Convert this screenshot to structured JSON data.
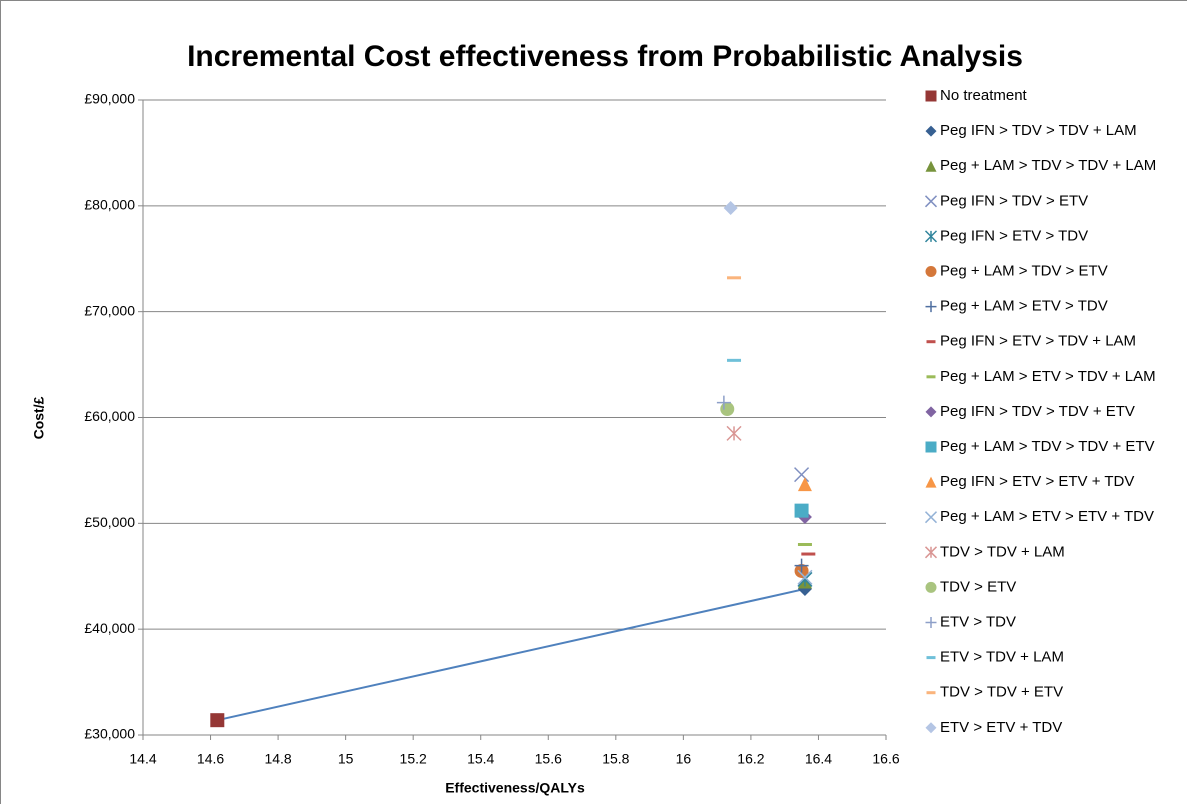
{
  "chart_data": {
    "type": "scatter",
    "title": "Incremental Cost effectiveness from Probabilistic Analysis",
    "x_label": "Effectiveness/QALYs",
    "y_label": "Cost/£",
    "xlim": [
      14.4,
      16.6
    ],
    "ylim": [
      30000,
      90000
    ],
    "xticks": [
      14.4,
      14.6,
      14.8,
      15,
      15.2,
      15.4,
      15.6,
      15.8,
      16,
      16.2,
      16.4,
      16.6
    ],
    "yticks": [
      {
        "value": 30000,
        "label": "£30,000"
      },
      {
        "value": 40000,
        "label": "£40,000"
      },
      {
        "value": 50000,
        "label": "£50,000"
      },
      {
        "value": 60000,
        "label": "£60,000"
      },
      {
        "value": 70000,
        "label": "£70,000"
      },
      {
        "value": 80000,
        "label": "£80,000"
      },
      {
        "value": 90000,
        "label": "£90,000"
      }
    ],
    "grid": true,
    "legend": "right",
    "frontier_color": "#4f81bd",
    "series": [
      {
        "name": "No treatment",
        "color": "#953735",
        "marker": "square",
        "x": [
          14.62
        ],
        "y": [
          31400
        ]
      },
      {
        "name": "Peg IFN > TDV > TDV + LAM",
        "color": "#376092",
        "marker": "diamond",
        "x": [
          16.36
        ],
        "y": [
          43800
        ]
      },
      {
        "name": "Peg + LAM > TDV > TDV + LAM",
        "color": "#77933c",
        "marker": "triangle",
        "x": [
          16.36
        ],
        "y": [
          44500
        ]
      },
      {
        "name": "Peg IFN > TDV > ETV",
        "color": "#7f8fc0",
        "marker": "x",
        "x": [
          16.35
        ],
        "y": [
          54600
        ]
      },
      {
        "name": "Peg IFN > ETV > TDV",
        "color": "#31859c",
        "marker": "star",
        "x": [
          16.36
        ],
        "y": [
          44700
        ]
      },
      {
        "name": "Peg + LAM > TDV > ETV",
        "color": "#d4773a",
        "marker": "circle",
        "x": [
          16.35
        ],
        "y": [
          45500
        ]
      },
      {
        "name": "Peg + LAM > ETV > TDV",
        "color": "#4f6fa0",
        "marker": "plus",
        "x": [
          16.35
        ],
        "y": [
          46000
        ]
      },
      {
        "name": "Peg IFN > ETV > TDV + LAM",
        "color": "#c0504d",
        "marker": "dash",
        "x": [
          16.37
        ],
        "y": [
          47100
        ]
      },
      {
        "name": "Peg + LAM > ETV > TDV + LAM",
        "color": "#9bbb59",
        "marker": "dash",
        "x": [
          16.36
        ],
        "y": [
          48000
        ]
      },
      {
        "name": "Peg IFN > TDV > TDV + ETV",
        "color": "#8064a2",
        "marker": "diamond",
        "x": [
          16.36
        ],
        "y": [
          50600
        ]
      },
      {
        "name": "Peg + LAM > TDV > TDV + ETV",
        "color": "#4bacc6",
        "marker": "square",
        "x": [
          16.35
        ],
        "y": [
          51200
        ]
      },
      {
        "name": "Peg IFN > ETV > ETV + TDV",
        "color": "#f79646",
        "marker": "triangle",
        "x": [
          16.36
        ],
        "y": [
          53700
        ]
      },
      {
        "name": "Peg + LAM > ETV > ETV + TDV",
        "color": "#95b3d7",
        "marker": "x",
        "x": [
          16.36
        ],
        "y": [
          44900
        ]
      },
      {
        "name": "TDV > TDV + LAM",
        "color": "#d99694",
        "marker": "star",
        "x": [
          16.15
        ],
        "y": [
          58500
        ]
      },
      {
        "name": "TDV > ETV",
        "color": "#a9c47f",
        "marker": "circle",
        "x": [
          16.13
        ],
        "y": [
          60800
        ]
      },
      {
        "name": "ETV > TDV",
        "color": "#8d9fc8",
        "marker": "plus",
        "x": [
          16.12
        ],
        "y": [
          61400
        ]
      },
      {
        "name": "ETV > TDV + LAM",
        "color": "#6fc0d9",
        "marker": "dash",
        "x": [
          16.15
        ],
        "y": [
          65400
        ]
      },
      {
        "name": "TDV > TDV + ETV",
        "color": "#fab47c",
        "marker": "dash",
        "x": [
          16.15
        ],
        "y": [
          73200
        ]
      },
      {
        "name": "ETV > ETV + TDV",
        "color": "#b4c5e4",
        "marker": "diamond",
        "x": [
          16.14
        ],
        "y": [
          79800
        ]
      }
    ]
  }
}
